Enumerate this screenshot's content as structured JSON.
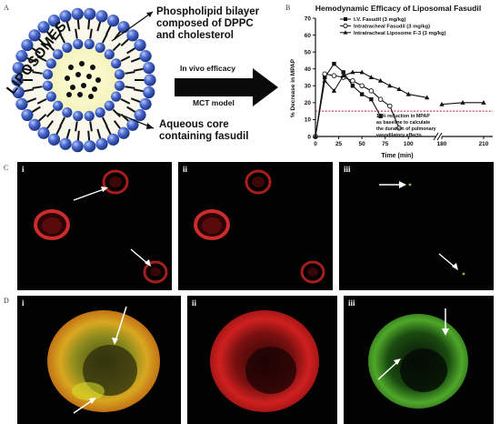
{
  "panel_labels": {
    "a": "A",
    "b": "B",
    "c": "C",
    "d": "D"
  },
  "schematic": {
    "liposomes": "LIPOSOMES",
    "bilayer_line1": "Phospholipid bilayer",
    "bilayer_line2": "composed of DPPC",
    "bilayer_line3": "and cholesterol",
    "core_line1": "Aqueous core",
    "core_line2": "containing fasudil",
    "arrow_line1": "In vivo efficacy",
    "arrow_line2": "MCT model"
  },
  "chart_data": {
    "type": "line",
    "title": "Hemodynamic  Efficacy of Liposomal Fasudil",
    "xlabel": "Time (min)",
    "ylabel": "% Decrease in MPAP",
    "ylim": [
      0,
      70
    ],
    "yticks": [
      "0",
      "10",
      "20",
      "30",
      "40",
      "50",
      "60",
      "70"
    ],
    "xticks": [
      "0",
      "25",
      "50",
      "75",
      "100",
      "180",
      "210"
    ],
    "axis_break": true,
    "grid": false,
    "legend_position": "top-right",
    "threshold": {
      "y": 15,
      "note_line1": "15% reduction in MPAP",
      "note_line2": "as baseline to calculate",
      "note_line3": "the duration of pulmonary",
      "note_line4": "vasodilatory effects"
    },
    "series": [
      {
        "name": "I.V. Fasudil (3 mg/kg)",
        "marker": "square",
        "x": [
          0,
          10,
          20,
          30,
          40,
          50,
          60,
          70
        ],
        "y": [
          0,
          35,
          43,
          38,
          30,
          25,
          22,
          12
        ]
      },
      {
        "name": "Intratracheal Fasudil (3 mg/kg)",
        "marker": "circle",
        "x": [
          0,
          10,
          20,
          30,
          40,
          50,
          60,
          70,
          80,
          90
        ],
        "y": [
          0,
          37,
          36,
          35,
          33,
          30,
          27,
          22,
          18,
          5
        ]
      },
      {
        "name": "Intratracheal Liposome F-3 (3 mg/kg)",
        "marker": "triangle",
        "x": [
          0,
          10,
          20,
          30,
          40,
          50,
          60,
          70,
          80,
          90,
          100,
          120,
          180,
          195,
          210
        ],
        "y": [
          0,
          33,
          27,
          36,
          38,
          38,
          35,
          33,
          30,
          28,
          25,
          23,
          19,
          20,
          20
        ]
      }
    ]
  },
  "micro_c": [
    {
      "label": "i"
    },
    {
      "label": "ii"
    },
    {
      "label": "iii"
    }
  ],
  "micro_d": [
    {
      "label": "i"
    },
    {
      "label": "ii"
    },
    {
      "label": "iii"
    }
  ]
}
